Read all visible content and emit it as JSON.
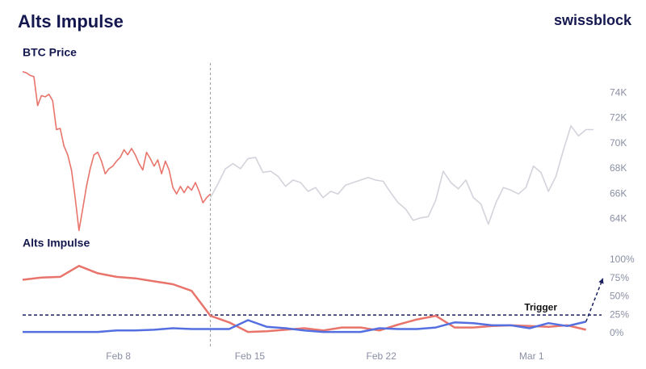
{
  "header": {
    "title": "Alts Impulse",
    "brand": "swissblock"
  },
  "chart_data": [
    {
      "type": "line",
      "title": "BTC Price",
      "xlim": [
        2.9,
        33.3
      ],
      "ylim": [
        63,
        76
      ],
      "yticks": [
        {
          "value": 64,
          "label": "64K"
        },
        {
          "value": 66,
          "label": "66K"
        },
        {
          "value": 68,
          "label": "68K"
        },
        {
          "value": 70,
          "label": "70K"
        },
        {
          "value": 72,
          "label": "72K"
        },
        {
          "value": 74,
          "label": "74K"
        }
      ],
      "series": [
        {
          "color": "#e8746b",
          "x": [
            2.9,
            3.1,
            3.3,
            3.5,
            3.7,
            3.9,
            4.1,
            4.3,
            4.5,
            4.7,
            4.9,
            5.1,
            5.3,
            5.5,
            5.7,
            5.9,
            6.1,
            6.3,
            6.5,
            6.7,
            6.9,
            7.1,
            7.3,
            7.5,
            7.7,
            7.9,
            8.1,
            8.3,
            8.5,
            8.7,
            8.9,
            9.1,
            9.3,
            9.5,
            9.7,
            9.9,
            10.1,
            10.3,
            10.5,
            10.7,
            10.9,
            11.1,
            11.3,
            11.5,
            11.7,
            11.9,
            12.1,
            12.3,
            12.5,
            12.7,
            12.9
          ],
          "values": [
            75.7,
            75.6,
            75.4,
            75.3,
            73.0,
            73.8,
            73.7,
            73.9,
            73.4,
            71.1,
            71.2,
            69.8,
            69.1,
            67.9,
            65.7,
            63.1,
            64.8,
            66.6,
            68.0,
            69.1,
            69.3,
            68.6,
            67.6,
            68.0,
            68.2,
            68.6,
            68.9,
            69.5,
            69.1,
            69.6,
            69.1,
            68.4,
            67.9,
            69.3,
            68.8,
            68.2,
            68.7,
            67.6,
            68.6,
            67.9,
            66.5,
            66.0,
            66.6,
            66.1,
            66.6,
            66.3,
            66.9,
            66.2,
            65.3,
            65.7,
            66.0
          ]
        },
        {
          "color": "#d3d3dc",
          "x": [
            12.9,
            13.3,
            13.7,
            14.1,
            14.5,
            14.9,
            15.3,
            15.7,
            16.1,
            16.5,
            16.9,
            17.3,
            17.7,
            18.1,
            18.5,
            18.9,
            19.3,
            19.7,
            20.1,
            20.5,
            20.9,
            21.3,
            21.7,
            22.1,
            22.5,
            22.9,
            23.3,
            23.7,
            24.1,
            24.5,
            24.9,
            25.3,
            25.7,
            26.1,
            26.5,
            26.9,
            27.3,
            27.7,
            28.1,
            28.5,
            28.9,
            29.3,
            29.7,
            30.1,
            30.5,
            30.9,
            31.3,
            31.7,
            32.1,
            32.5,
            32.9,
            33.3
          ],
          "values": [
            65.7,
            66.8,
            68.0,
            68.4,
            68.0,
            68.8,
            68.9,
            67.7,
            67.8,
            67.4,
            66.6,
            67.1,
            66.9,
            66.2,
            66.5,
            65.7,
            66.2,
            66.0,
            66.7,
            66.9,
            67.1,
            67.3,
            67.1,
            67.0,
            66.1,
            65.3,
            64.8,
            63.9,
            64.1,
            64.2,
            65.5,
            67.8,
            66.9,
            66.4,
            67.1,
            65.7,
            65.2,
            63.6,
            65.3,
            66.5,
            66.3,
            66.0,
            66.5,
            68.2,
            67.7,
            66.2,
            67.4,
            69.5,
            71.4,
            70.6,
            71.1,
            71.1
          ]
        }
      ]
    },
    {
      "type": "line",
      "title": "Alts Impulse",
      "xlim": [
        2.9,
        33.3
      ],
      "ylim": [
        -10,
        100
      ],
      "xticks": [
        {
          "value": 8,
          "label": "Feb 8"
        },
        {
          "value": 15,
          "label": "Feb 15"
        },
        {
          "value": 22,
          "label": "Feb 22"
        },
        {
          "value": 30,
          "label": "Mar 1"
        }
      ],
      "yticks": [
        {
          "value": 0,
          "label": "0%"
        },
        {
          "value": 25,
          "label": "25%"
        },
        {
          "value": 50,
          "label": "50%"
        },
        {
          "value": 75,
          "label": "75%"
        },
        {
          "value": 100,
          "label": "100%"
        }
      ],
      "series": [
        {
          "color": "#e8746b",
          "x": [
            2.9,
            3.9,
            4.9,
            5.9,
            6.9,
            7.9,
            8.9,
            9.9,
            10.9,
            11.9,
            12.9,
            13.9,
            14.9,
            15.9,
            16.9,
            17.9,
            18.9,
            19.9,
            20.9,
            21.9,
            22.9,
            23.9,
            24.9,
            25.9,
            26.9,
            27.9,
            28.9,
            29.9,
            30.9,
            31.9,
            32.9
          ],
          "values": [
            73,
            76,
            77,
            92,
            82,
            77,
            75,
            71,
            67,
            58,
            24,
            15,
            2,
            3,
            5,
            7,
            4,
            8,
            8,
            4,
            12,
            19,
            24,
            8,
            8,
            10,
            11,
            10,
            9,
            11,
            5
          ]
        },
        {
          "color": "#5470e0",
          "x": [
            2.9,
            3.9,
            4.9,
            5.9,
            6.9,
            7.9,
            8.9,
            9.9,
            10.9,
            11.9,
            12.9,
            13.9,
            14.9,
            15.9,
            16.9,
            17.9,
            18.9,
            19.9,
            20.9,
            21.9,
            22.9,
            23.9,
            24.9,
            25.9,
            26.9,
            27.9,
            28.9,
            29.9,
            30.9,
            31.9,
            32.9
          ],
          "values": [
            2,
            2,
            2,
            2,
            2,
            4,
            4,
            5,
            7,
            6,
            6,
            6,
            18,
            9,
            7,
            4,
            2,
            2,
            2,
            7,
            6,
            6,
            8,
            15,
            14,
            11,
            11,
            7,
            14,
            10,
            16
          ]
        }
      ],
      "projection": {
        "color": "#1a1f5e",
        "x": [
          32.9,
          33.8
        ],
        "values": [
          16,
          75
        ]
      },
      "trigger": {
        "label": "Trigger",
        "value": 25,
        "color": "#1a1f5e"
      }
    }
  ]
}
